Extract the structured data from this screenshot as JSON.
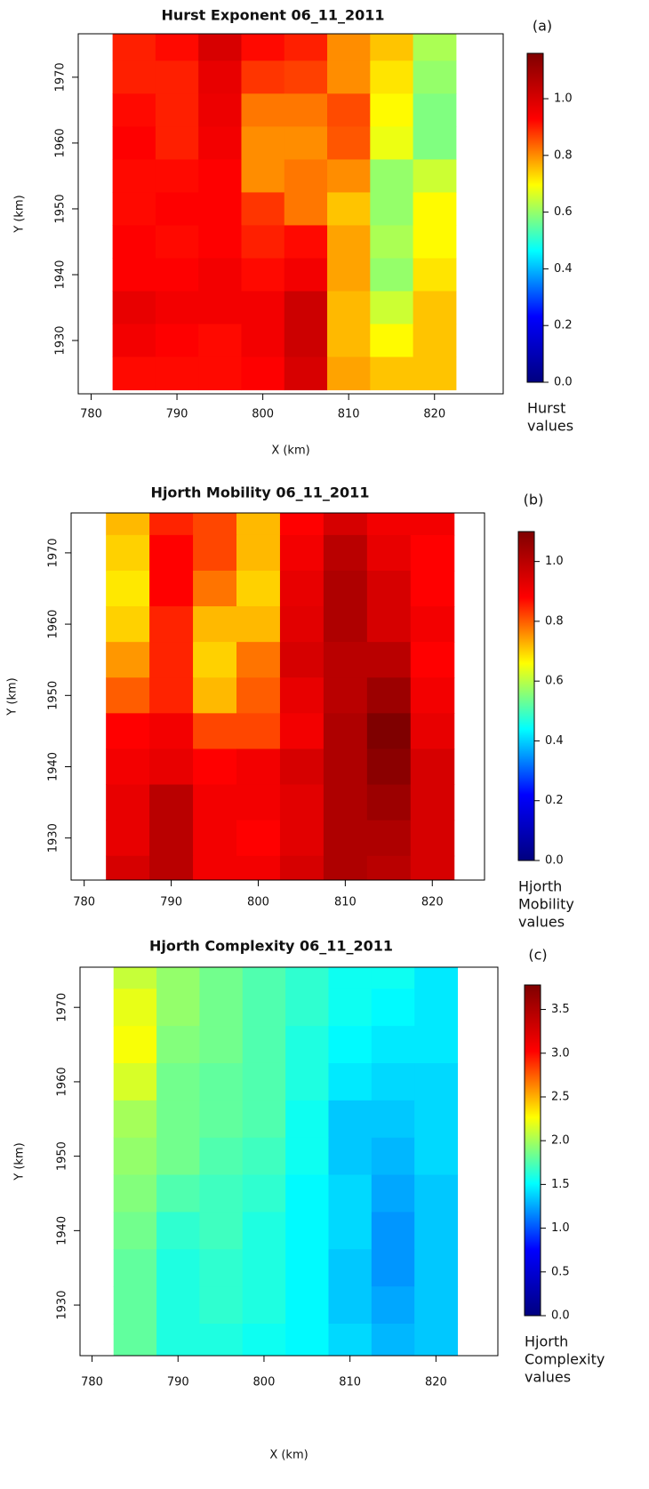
{
  "chart_data": [
    {
      "type": "heatmap",
      "title": "Hurst Exponent 06_11_2011",
      "panel_label": "(a)",
      "xlabel": "X (km)",
      "ylabel": "Y (km)",
      "colorbar_label": [
        "Hurst",
        "values"
      ],
      "x": [
        785,
        790,
        795,
        800,
        805,
        810,
        815,
        820
      ],
      "y": [
        1975,
        1970,
        1965,
        1960,
        1955,
        1950,
        1945,
        1940,
        1935,
        1930,
        1925
      ],
      "z": [
        [
          0.9,
          0.92,
          1.0,
          0.92,
          0.9,
          0.8,
          0.75,
          0.62
        ],
        [
          0.9,
          0.9,
          0.97,
          0.88,
          0.87,
          0.8,
          0.72,
          0.6
        ],
        [
          0.92,
          0.9,
          0.96,
          0.82,
          0.82,
          0.86,
          0.7,
          0.58
        ],
        [
          0.93,
          0.9,
          0.95,
          0.8,
          0.8,
          0.85,
          0.68,
          0.58
        ],
        [
          0.92,
          0.92,
          0.93,
          0.8,
          0.82,
          0.8,
          0.6,
          0.65
        ],
        [
          0.92,
          0.93,
          0.93,
          0.88,
          0.82,
          0.75,
          0.6,
          0.7
        ],
        [
          0.93,
          0.92,
          0.93,
          0.9,
          0.92,
          0.78,
          0.62,
          0.7
        ],
        [
          0.93,
          0.93,
          0.95,
          0.92,
          0.95,
          0.78,
          0.6,
          0.72
        ],
        [
          0.97,
          0.95,
          0.95,
          0.95,
          1.02,
          0.76,
          0.65,
          0.75
        ],
        [
          0.95,
          0.93,
          0.92,
          0.95,
          1.02,
          0.76,
          0.7,
          0.75
        ],
        [
          0.92,
          0.92,
          0.92,
          0.93,
          1.0,
          0.78,
          0.75,
          0.75
        ]
      ],
      "xlim": [
        778.5,
        828
      ],
      "ylim": [
        1921.9,
        1976.6
      ],
      "xticks": [
        780,
        790,
        800,
        810,
        820
      ],
      "yticks": [
        1930,
        1940,
        1950,
        1960,
        1970
      ],
      "zlim": [
        0,
        1.16
      ],
      "zticks": [
        {
          "value": 0,
          "label": "0.0"
        },
        {
          "value": 0.2,
          "label": "0.2"
        },
        {
          "value": 0.4,
          "label": "0.4"
        },
        {
          "value": 0.6,
          "label": "0.6"
        },
        {
          "value": 0.8,
          "label": "0.8"
        },
        {
          "value": 1,
          "label": "1.0"
        }
      ],
      "colormap": [
        "#00007f",
        "#0000ff",
        "#00ffff",
        "#ffff00",
        "#ff0000",
        "#7f0000"
      ]
    },
    {
      "type": "heatmap",
      "title": "Hjorth Mobility 06_11_2011",
      "panel_label": "(b)",
      "ylabel": "Y (km)",
      "colorbar_label": [
        "Hjorth",
        "Mobility",
        "values"
      ],
      "x": [
        785,
        790,
        795,
        800,
        805,
        810,
        815,
        820
      ],
      "y": [
        1975,
        1970,
        1965,
        1960,
        1955,
        1950,
        1945,
        1940,
        1935,
        1930,
        1925
      ],
      "z": [
        [
          0.72,
          0.85,
          0.82,
          0.72,
          0.88,
          0.95,
          0.9,
          0.9
        ],
        [
          0.7,
          0.88,
          0.82,
          0.72,
          0.9,
          1.0,
          0.92,
          0.88
        ],
        [
          0.68,
          0.88,
          0.78,
          0.7,
          0.92,
          1.02,
          0.95,
          0.88
        ],
        [
          0.7,
          0.85,
          0.72,
          0.72,
          0.93,
          1.02,
          0.95,
          0.9
        ],
        [
          0.75,
          0.85,
          0.7,
          0.78,
          0.95,
          1.0,
          1.0,
          0.88
        ],
        [
          0.8,
          0.85,
          0.72,
          0.8,
          0.92,
          1.0,
          1.05,
          0.9
        ],
        [
          0.88,
          0.9,
          0.82,
          0.82,
          0.9,
          1.02,
          1.1,
          0.92
        ],
        [
          0.9,
          0.92,
          0.88,
          0.9,
          0.95,
          1.02,
          1.08,
          0.95
        ],
        [
          0.92,
          1.0,
          0.9,
          0.9,
          0.93,
          1.02,
          1.05,
          0.95
        ],
        [
          0.92,
          1.0,
          0.9,
          0.88,
          0.93,
          1.02,
          1.02,
          0.95
        ],
        [
          0.95,
          1.0,
          0.9,
          0.9,
          0.95,
          1.02,
          1.0,
          0.95
        ]
      ],
      "xlim": [
        778.5,
        826
      ],
      "ylim": [
        1924.1,
        1975.6
      ],
      "xticks": [
        780,
        790,
        800,
        810,
        820
      ],
      "yticks": [
        1930,
        1940,
        1950,
        1960,
        1970
      ],
      "zlim": [
        0,
        1.1
      ],
      "zticks": [
        {
          "value": 0,
          "label": "0.0"
        },
        {
          "value": 0.2,
          "label": "0.2"
        },
        {
          "value": 0.4,
          "label": "0.4"
        },
        {
          "value": 0.6,
          "label": "0.6"
        },
        {
          "value": 0.8,
          "label": "0.8"
        },
        {
          "value": 1,
          "label": "1.0"
        }
      ],
      "colormap": [
        "#00007f",
        "#0000ff",
        "#00ffff",
        "#ffff00",
        "#ff0000",
        "#7f0000"
      ]
    },
    {
      "type": "heatmap",
      "title": "Hjorth Complexity 06_11_2011",
      "panel_label": "(c)",
      "xlabel": "X (km)",
      "ylabel": "Y (km)",
      "colorbar_label": [
        "Hjorth",
        "Complexity",
        "values"
      ],
      "x": [
        785,
        790,
        795,
        800,
        805,
        810,
        815,
        820
      ],
      "y": [
        1975,
        1970,
        1965,
        1960,
        1955,
        1950,
        1945,
        1940,
        1935,
        1930,
        1925
      ],
      "z": [
        [
          2.1,
          1.95,
          1.85,
          1.75,
          1.65,
          1.55,
          1.55,
          1.45
        ],
        [
          2.2,
          1.95,
          1.85,
          1.75,
          1.65,
          1.55,
          1.5,
          1.45
        ],
        [
          2.25,
          1.9,
          1.85,
          1.75,
          1.6,
          1.5,
          1.45,
          1.45
        ],
        [
          2.15,
          1.85,
          1.8,
          1.75,
          1.6,
          1.45,
          1.4,
          1.4
        ],
        [
          2.0,
          1.85,
          1.8,
          1.75,
          1.55,
          1.35,
          1.35,
          1.4
        ],
        [
          1.95,
          1.85,
          1.75,
          1.7,
          1.55,
          1.35,
          1.3,
          1.4
        ],
        [
          1.9,
          1.75,
          1.7,
          1.65,
          1.5,
          1.4,
          1.25,
          1.35
        ],
        [
          1.85,
          1.65,
          1.7,
          1.6,
          1.5,
          1.4,
          1.2,
          1.35
        ],
        [
          1.8,
          1.6,
          1.65,
          1.6,
          1.5,
          1.35,
          1.2,
          1.35
        ],
        [
          1.8,
          1.6,
          1.65,
          1.6,
          1.5,
          1.35,
          1.25,
          1.35
        ],
        [
          1.8,
          1.6,
          1.6,
          1.55,
          1.5,
          1.4,
          1.3,
          1.35
        ]
      ],
      "xlim": [
        778.6,
        827.2
      ],
      "ylim": [
        1923.2,
        1975.4
      ],
      "xticks": [
        780,
        790,
        800,
        810,
        820
      ],
      "yticks": [
        1930,
        1940,
        1950,
        1960,
        1970
      ],
      "zlim": [
        0,
        3.78
      ],
      "zticks": [
        {
          "value": 0,
          "label": "0.0"
        },
        {
          "value": 0.5,
          "label": "0.5"
        },
        {
          "value": 1,
          "label": "1.0"
        },
        {
          "value": 1.5,
          "label": "1.5"
        },
        {
          "value": 2,
          "label": "2.0"
        },
        {
          "value": 2.5,
          "label": "2.5"
        },
        {
          "value": 3,
          "label": "3.0"
        },
        {
          "value": 3.5,
          "label": "3.5"
        }
      ],
      "colormap": [
        "#00007f",
        "#0000ff",
        "#00ffff",
        "#ffff00",
        "#ff0000",
        "#7f0000"
      ]
    }
  ]
}
